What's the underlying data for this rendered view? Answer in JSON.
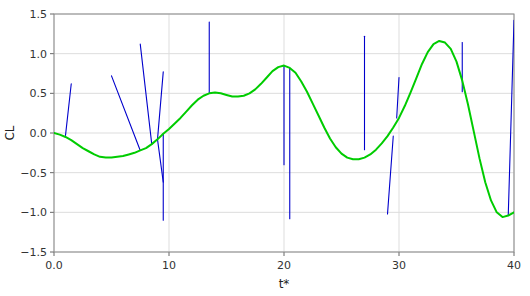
{
  "chart_data": {
    "type": "line",
    "xlabel": "t*",
    "ylabel": "CL",
    "xlim": [
      0,
      40
    ],
    "ylim": [
      -1.5,
      1.5
    ],
    "xticks": [
      {
        "value": 0,
        "label": "0.0"
      },
      10,
      20,
      30,
      40
    ],
    "yticks": [
      {
        "value": -1.5,
        "label": "−1.5"
      },
      {
        "value": -1.0,
        "label": "−1.0"
      },
      {
        "value": -0.5,
        "label": "−0.5"
      },
      {
        "value": 0.0,
        "label": "0.0"
      },
      0.5,
      {
        "value": 1.0,
        "label": "1.0"
      },
      1.5
    ],
    "grid": true,
    "series": [
      {
        "color": "#00cc00",
        "x": [
          0.0,
          0.5,
          1.0,
          1.5,
          2.0,
          2.5,
          3.0,
          3.5,
          4.0,
          4.5,
          5.0,
          5.5,
          6.0,
          6.5,
          7.0,
          7.5,
          8.0,
          8.5,
          9.0,
          9.5,
          10.0,
          10.5,
          11.0,
          11.5,
          12.0,
          12.5,
          13.0,
          13.5,
          14.0,
          14.5,
          15.0,
          15.5,
          16.0,
          16.5,
          17.0,
          17.5,
          18.0,
          18.5,
          19.0,
          19.5,
          20.0,
          20.5,
          21.0,
          21.5,
          22.0,
          22.5,
          23.0,
          23.5,
          24.0,
          24.5,
          25.0,
          25.5,
          26.0,
          26.5,
          27.0,
          27.5,
          28.0,
          28.5,
          29.0,
          29.5,
          30.0,
          30.5,
          31.0,
          31.5,
          32.0,
          32.5,
          33.0,
          33.5,
          34.0,
          34.5,
          35.0,
          35.5,
          36.0,
          36.5,
          37.0,
          37.5,
          38.0,
          38.5,
          39.0,
          39.5,
          40.0
        ],
        "values": [
          0.0,
          -0.02,
          -0.05,
          -0.09,
          -0.14,
          -0.19,
          -0.23,
          -0.27,
          -0.3,
          -0.31,
          -0.31,
          -0.3,
          -0.29,
          -0.27,
          -0.25,
          -0.22,
          -0.19,
          -0.14,
          -0.08,
          -0.01,
          0.05,
          0.12,
          0.19,
          0.27,
          0.35,
          0.42,
          0.47,
          0.5,
          0.51,
          0.5,
          0.48,
          0.46,
          0.46,
          0.47,
          0.5,
          0.55,
          0.62,
          0.7,
          0.78,
          0.83,
          0.85,
          0.82,
          0.76,
          0.65,
          0.52,
          0.37,
          0.22,
          0.07,
          -0.07,
          -0.18,
          -0.26,
          -0.31,
          -0.33,
          -0.33,
          -0.31,
          -0.27,
          -0.21,
          -0.13,
          -0.04,
          0.07,
          0.19,
          0.34,
          0.51,
          0.69,
          0.87,
          1.02,
          1.12,
          1.16,
          1.14,
          1.06,
          0.9,
          0.66,
          0.36,
          0.02,
          -0.32,
          -0.62,
          -0.85,
          -1.0,
          -1.06,
          -1.04,
          -1.0
        ]
      },
      {
        "color": "#0000cc",
        "x": [
          1.5,
          1.0
        ],
        "values": [
          0.62,
          -0.03
        ]
      },
      {
        "color": "#0000cc",
        "x": [
          5.0,
          7.5
        ],
        "values": [
          0.72,
          -0.22
        ]
      },
      {
        "color": "#0000cc",
        "x": [
          7.5,
          8.5
        ],
        "values": [
          1.12,
          -0.14
        ]
      },
      {
        "color": "#0000cc",
        "x": [
          9.5,
          9.0
        ],
        "values": [
          0.77,
          -0.08
        ]
      },
      {
        "color": "#0000cc",
        "x": [
          9.5,
          9.0
        ],
        "values": [
          -0.62,
          -0.08
        ]
      },
      {
        "color": "#0000cc",
        "x": [
          9.5,
          9.5
        ],
        "values": [
          -1.1,
          -0.01
        ]
      },
      {
        "color": "#0000cc",
        "x": [
          13.5,
          13.5
        ],
        "values": [
          1.4,
          0.5
        ]
      },
      {
        "color": "#0000cc",
        "x": [
          20.0,
          20.0
        ],
        "values": [
          -0.4,
          0.85
        ]
      },
      {
        "color": "#0000cc",
        "x": [
          20.5,
          20.5
        ],
        "values": [
          -1.08,
          0.82
        ]
      },
      {
        "color": "#0000cc",
        "x": [
          27.0,
          27.0
        ],
        "values": [
          1.22,
          -0.21
        ]
      },
      {
        "color": "#0000cc",
        "x": [
          29.0,
          29.5
        ],
        "values": [
          -1.02,
          -0.04
        ]
      },
      {
        "color": "#0000cc",
        "x": [
          30.0,
          29.8
        ],
        "values": [
          0.7,
          0.19
        ]
      },
      {
        "color": "#0000cc",
        "x": [
          35.5,
          35.5
        ],
        "values": [
          0.52,
          1.14
        ]
      },
      {
        "color": "#0000cc",
        "x": [
          40.0,
          39.5
        ],
        "values": [
          1.42,
          -1.04
        ]
      }
    ]
  }
}
